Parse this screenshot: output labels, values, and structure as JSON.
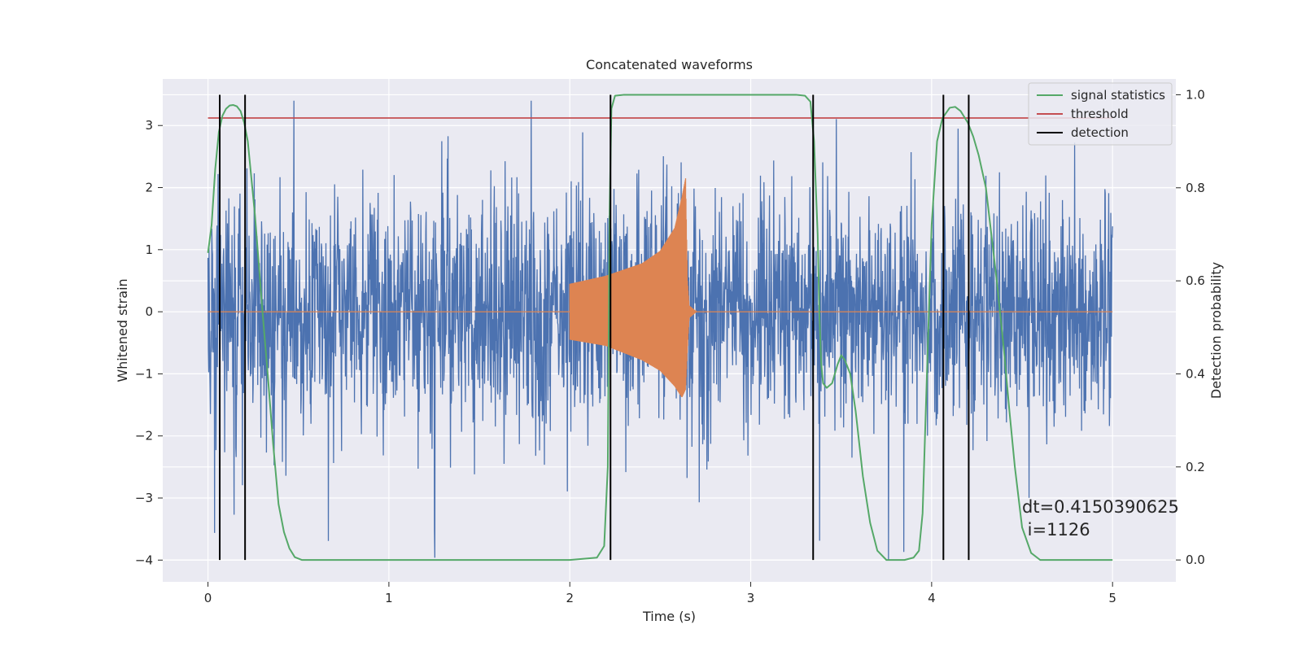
{
  "chart_data": {
    "type": "line",
    "title": "Concatenated waveforms",
    "xlabel": "Time (s)",
    "ylabel": "Whitened strain",
    "y2label": "Detection probability",
    "xlim": [
      -0.25,
      5.35
    ],
    "ylim": [
      -4.35,
      3.75
    ],
    "y2lim": [
      -0.047,
      1.034
    ],
    "xticks": [
      0,
      1,
      2,
      3,
      4,
      5
    ],
    "yticks": [
      3,
      2,
      1,
      0,
      -1,
      -2,
      -3,
      -4
    ],
    "y2ticks": [
      1.0,
      0.8,
      0.6,
      0.4,
      0.2,
      0.0
    ],
    "xtick_labels": [
      "0",
      "1",
      "2",
      "3",
      "4",
      "5"
    ],
    "ytick_labels": [
      "3",
      "2",
      "1",
      "0",
      "−1",
      "−2",
      "−3",
      "−4"
    ],
    "y2tick_labels": [
      "1.0",
      "0.8",
      "0.6",
      "0.4",
      "0.2",
      "0.0"
    ],
    "grid": true,
    "legend_position": "top-right",
    "legend": [
      {
        "label": "signal statistics",
        "color": "#55a868"
      },
      {
        "label": "threshold",
        "color": "#c44e52"
      },
      {
        "label": "detection",
        "color": "#000000"
      }
    ],
    "colors": {
      "noise": "#4c72b0",
      "template": "#dd8452",
      "signal_statistics": "#55a868",
      "threshold": "#c44e52",
      "detection": "#000000",
      "axes_background": "#eaeaf2",
      "grid": "#ffffff"
    },
    "noise_series": {
      "x_start": 0.0,
      "x_end": 5.0,
      "typical_amplitude": 1.1,
      "peak_max": 3.4,
      "peak_min": -4.0
    },
    "template_series": {
      "x": [
        0.0,
        2.0,
        2.0,
        2.2,
        2.4,
        2.5,
        2.58,
        2.62,
        2.64,
        2.65,
        2.66,
        2.7,
        5.0
      ],
      "envelope_upper": [
        0.0,
        0.0,
        0.45,
        0.58,
        0.78,
        0.98,
        1.35,
        1.85,
        2.15,
        0.5,
        0.1,
        0.0,
        0.0
      ],
      "envelope_lower": [
        0.0,
        0.0,
        -0.45,
        -0.55,
        -0.78,
        -0.95,
        -1.2,
        -1.38,
        -1.25,
        -0.6,
        -0.1,
        0.0,
        0.0
      ]
    },
    "series": [
      {
        "name": "signal statistics",
        "axis": "right",
        "x": [
          0.0,
          0.02,
          0.04,
          0.06,
          0.08,
          0.1,
          0.12,
          0.14,
          0.16,
          0.18,
          0.2,
          0.22,
          0.24,
          0.26,
          0.28,
          0.3,
          0.33,
          0.36,
          0.39,
          0.42,
          0.45,
          0.48,
          0.52,
          0.6,
          1.0,
          1.5,
          2.0,
          2.15,
          2.19,
          2.21,
          2.22,
          2.23,
          2.25,
          2.3,
          2.5,
          3.0,
          3.25,
          3.3,
          3.33,
          3.35,
          3.37,
          3.38,
          3.39,
          3.4,
          3.42,
          3.45,
          3.48,
          3.5,
          3.52,
          3.55,
          3.58,
          3.62,
          3.66,
          3.7,
          3.75,
          3.85,
          3.9,
          3.93,
          3.95,
          3.97,
          4.0,
          4.03,
          4.06,
          4.1,
          4.13,
          4.16,
          4.2,
          4.23,
          4.26,
          4.3,
          4.33,
          4.36,
          4.4,
          4.43,
          4.46,
          4.5,
          4.55,
          4.6,
          5.0
        ],
        "values": [
          0.66,
          0.72,
          0.84,
          0.92,
          0.955,
          0.97,
          0.977,
          0.978,
          0.975,
          0.965,
          0.94,
          0.9,
          0.82,
          0.74,
          0.64,
          0.54,
          0.4,
          0.25,
          0.12,
          0.06,
          0.025,
          0.006,
          0.0,
          0.0,
          0.0,
          0.0,
          0.0,
          0.005,
          0.03,
          0.2,
          0.75,
          0.97,
          0.998,
          1.0,
          1.0,
          1.0,
          1.0,
          0.998,
          0.985,
          0.9,
          0.7,
          0.52,
          0.42,
          0.38,
          0.37,
          0.38,
          0.42,
          0.44,
          0.43,
          0.4,
          0.32,
          0.18,
          0.08,
          0.02,
          0.0,
          0.0,
          0.005,
          0.02,
          0.1,
          0.35,
          0.72,
          0.9,
          0.95,
          0.972,
          0.974,
          0.965,
          0.94,
          0.91,
          0.87,
          0.8,
          0.7,
          0.6,
          0.45,
          0.32,
          0.2,
          0.07,
          0.015,
          0.0,
          0.0
        ]
      },
      {
        "name": "threshold",
        "axis": "right",
        "x": [
          0.0,
          5.0
        ],
        "values": [
          0.95,
          0.95
        ]
      }
    ],
    "detections": [
      0.065,
      0.205,
      2.225,
      3.345,
      4.065,
      4.205
    ],
    "detection_ymax": 1.0,
    "annotation": {
      "line1": "dt=0.4150390625",
      "line2": " i=1126"
    }
  }
}
